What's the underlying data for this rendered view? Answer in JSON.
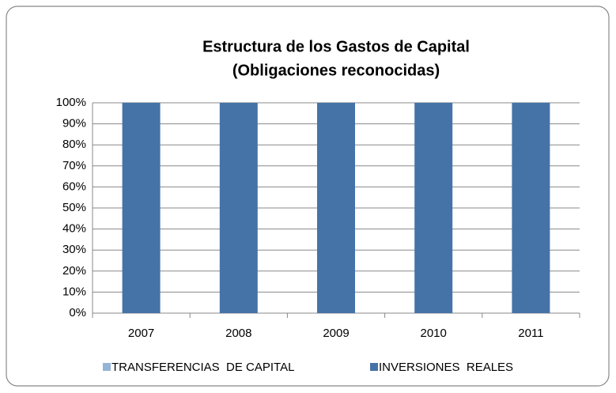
{
  "chart_data": {
    "type": "stacked_bar",
    "title": "Estructura de los Gastos de Capital",
    "subtitle": "(Obligaciones reconocidas)",
    "categories": [
      "2007",
      "2008",
      "2009",
      "2010",
      "2011"
    ],
    "series": [
      {
        "name": "TRANSFERENCIAS  DE CAPITAL",
        "color": "#95b3d7",
        "values": [
          0,
          0,
          0,
          0,
          0
        ]
      },
      {
        "name": "INVERSIONES  REALES",
        "color": "#4573a7",
        "values": [
          100,
          100,
          100,
          100,
          100
        ]
      }
    ],
    "ylim": [
      0,
      100
    ],
    "yticks": [
      {
        "value": 0,
        "label": "0%"
      },
      {
        "value": 10,
        "label": "10%"
      },
      {
        "value": 20,
        "label": "20%"
      },
      {
        "value": 30,
        "label": "30%"
      },
      {
        "value": 40,
        "label": "40%"
      },
      {
        "value": 50,
        "label": "50%"
      },
      {
        "value": 60,
        "label": "60%"
      },
      {
        "value": 70,
        "label": "70%"
      },
      {
        "value": 80,
        "label": "80%"
      },
      {
        "value": 90,
        "label": "90%"
      },
      {
        "value": 100,
        "label": "100%"
      }
    ],
    "grid": true,
    "legend": "bottom"
  }
}
